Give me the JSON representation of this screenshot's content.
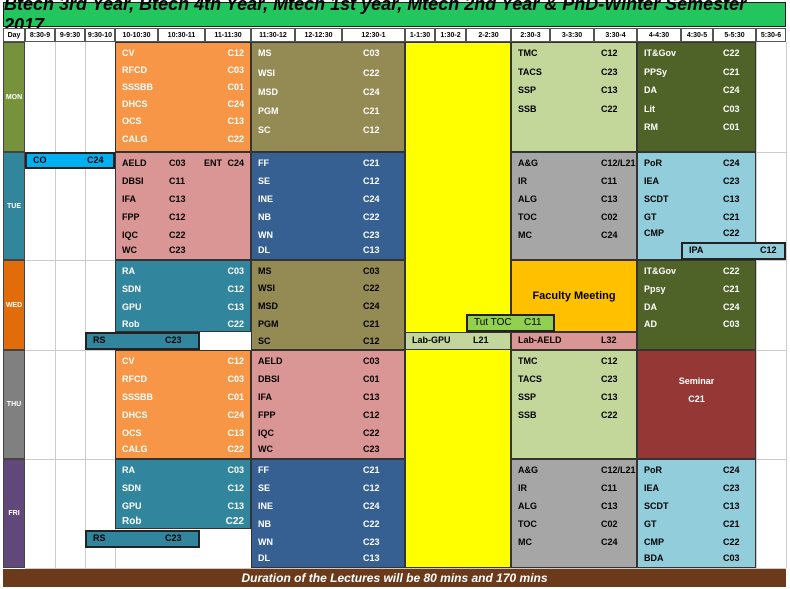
{
  "title": "Btech 3rd Year, Btech 4th Year, Mtech 1st year, Mtech 2nd Year & PhD-Winter Semester 2017",
  "header": [
    "Day",
    "8:30-9",
    "9-9:30",
    "9:30-10",
    "10-10:30",
    "10:30-11",
    "11-11:30",
    "11:30-12",
    "12-12:30",
    "12:30-1",
    "1-1:30",
    "1:30-2",
    "2-2:30",
    "2:30-3",
    "3-3:30",
    "3:30-4",
    "4-4:30",
    "4:30-5",
    "5-5:30",
    "5:30-6"
  ],
  "days": [
    "MON",
    "TUE",
    "WED",
    "THU",
    "FRI"
  ],
  "mon": {
    "a": [
      [
        "CV",
        "C12"
      ],
      [
        "RFCD",
        "C03"
      ],
      [
        "SSSBB",
        "C01"
      ],
      [
        "DHCS",
        "C24"
      ],
      [
        "OCS",
        "C13"
      ],
      [
        "CALG",
        "C22"
      ]
    ],
    "b": [
      [
        "MS",
        "C03"
      ],
      [
        "WSI",
        "C22"
      ],
      [
        "MSD",
        "C24"
      ],
      [
        "PGM",
        "C21"
      ],
      [
        "SC",
        "C12"
      ]
    ],
    "c": [
      [
        "TMC",
        "C12"
      ],
      [
        "TACS",
        "C23"
      ],
      [
        "SSP",
        "C13"
      ],
      [
        "SSB",
        "C22"
      ]
    ],
    "d": [
      [
        "IT&Gov",
        "C22"
      ],
      [
        "PPSy",
        "C21"
      ],
      [
        "DA",
        "C24"
      ],
      [
        "Lit",
        "C03"
      ],
      [
        "RM",
        "C01"
      ]
    ]
  },
  "tue": {
    "co": [
      "CO",
      "C24"
    ],
    "a_first": [
      "AELD",
      "C03",
      "ENT",
      "C24"
    ],
    "a": [
      [
        "DBSI",
        "C11"
      ],
      [
        "IFA",
        "C13"
      ],
      [
        "FPP",
        "C12"
      ],
      [
        "IQC",
        "C22"
      ],
      [
        "WC",
        "C23"
      ]
    ],
    "b": [
      [
        "FF",
        "C21"
      ],
      [
        "SE",
        "C12"
      ],
      [
        "INE",
        "C24"
      ],
      [
        "NB",
        "C22"
      ],
      [
        "WN",
        "C23"
      ],
      [
        "DL",
        "C13"
      ]
    ],
    "c": [
      [
        "A&G",
        "C12/L21"
      ],
      [
        "IR",
        "C11"
      ],
      [
        "ALG",
        "C13"
      ],
      [
        "TOC",
        "C02"
      ],
      [
        "MC",
        "C24"
      ]
    ],
    "d": [
      [
        "PoR",
        "C24"
      ],
      [
        "IEA",
        "C23"
      ],
      [
        "SCDT",
        "C13"
      ],
      [
        "GT",
        "C21"
      ],
      [
        "CMP",
        "C22"
      ]
    ],
    "ipa": [
      "IPA",
      "C12"
    ]
  },
  "wed": {
    "a": [
      [
        "RA",
        "C03"
      ],
      [
        "SDN",
        "C12"
      ],
      [
        "GPU",
        "C13"
      ],
      [
        "Rob",
        "C22"
      ]
    ],
    "rs": [
      "RS",
      "C23"
    ],
    "b": [
      [
        "MS",
        "C03"
      ],
      [
        "WSI",
        "C22"
      ],
      [
        "MSD",
        "C24"
      ],
      [
        "PGM",
        "C21"
      ],
      [
        "SC",
        "C12"
      ]
    ],
    "faculty": "Faculty Meeting",
    "tut": [
      "Tut TOC",
      "C11"
    ],
    "labgpu": [
      "Lab-GPU",
      "L21"
    ],
    "labaeld": [
      "Lab-AELD",
      "L32"
    ],
    "d": [
      [
        "IT&Gov",
        "C22"
      ],
      [
        "Ppsy",
        "C21"
      ],
      [
        "DA",
        "C24"
      ],
      [
        "AD",
        "C03"
      ]
    ]
  },
  "thu": {
    "a": [
      [
        "CV",
        "C12"
      ],
      [
        "RFCD",
        "C03"
      ],
      [
        "SSSBB",
        "C01"
      ],
      [
        "DHCS",
        "C24"
      ],
      [
        "OCS",
        "C13"
      ],
      [
        "CALG",
        "C22"
      ]
    ],
    "b": [
      [
        "AELD",
        "C03"
      ],
      [
        "DBSI",
        "C01"
      ],
      [
        "IFA",
        "C13"
      ],
      [
        "FPP",
        "C12"
      ],
      [
        "IQC",
        "C22"
      ],
      [
        "WC",
        "C23"
      ]
    ],
    "c": [
      [
        "TMC",
        "C12"
      ],
      [
        "TACS",
        "C23"
      ],
      [
        "SSP",
        "C13"
      ],
      [
        "SSB",
        "C22"
      ]
    ],
    "seminar": [
      "Seminar",
      "C21"
    ]
  },
  "fri": {
    "a": [
      [
        "RA",
        "C03"
      ],
      [
        "SDN",
        "C12"
      ],
      [
        "GPU",
        "C13"
      ],
      [
        "Rob",
        "C22"
      ]
    ],
    "rs": [
      "RS",
      "C23"
    ],
    "b": [
      [
        "FF",
        "C21"
      ],
      [
        "SE",
        "C12"
      ],
      [
        "INE",
        "C24"
      ],
      [
        "NB",
        "C22"
      ],
      [
        "WN",
        "C23"
      ],
      [
        "DL",
        "C13"
      ]
    ],
    "c": [
      [
        "A&G",
        "C12/L21"
      ],
      [
        "IR",
        "C11"
      ],
      [
        "ALG",
        "C13"
      ],
      [
        "TOC",
        "C02"
      ],
      [
        "MC",
        "C24"
      ]
    ],
    "d": [
      [
        "PoR",
        "C24"
      ],
      [
        "IEA",
        "C23"
      ],
      [
        "SCDT",
        "C13"
      ],
      [
        "GT",
        "C21"
      ],
      [
        "CMP",
        "C22"
      ],
      [
        "BDA",
        "C03"
      ]
    ]
  },
  "footer": "Duration of the Lectures will be 80 mins and 170 mins",
  "colors": {
    "title": "#22c55e",
    "orange": "#f79646",
    "olive": "#948a54",
    "lightgreen": "#c4d79b",
    "darkgreen": "#4f6228",
    "cyanblue": "#00b0f0",
    "pink": "#da9694",
    "navy": "#366092",
    "grey": "#a6a6a6",
    "lightblue": "#92cddc",
    "teal": "#31859c",
    "yellow": "#ffff00",
    "gold": "#ffc000",
    "brightgreen": "#92d050",
    "maroon": "#953735",
    "lunch": "#ffff00",
    "mon": "#76933c",
    "tue": "#31869b",
    "wed": "#e26b0a",
    "thu": "#808080",
    "fri": "#60497a",
    "footer": "#6b3a1a"
  }
}
